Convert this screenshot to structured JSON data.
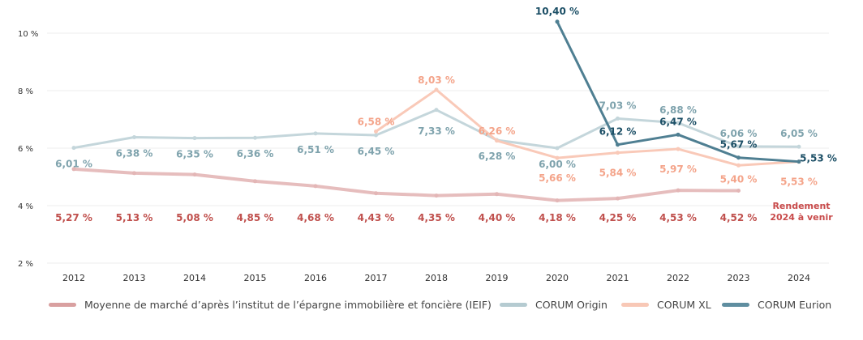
{
  "chart_data": {
    "type": "line",
    "x": [
      "2012",
      "2013",
      "2014",
      "2015",
      "2016",
      "2017",
      "2018",
      "2019",
      "2020",
      "2021",
      "2022",
      "2023",
      "2024"
    ],
    "y_ticks": [
      "10 %",
      "8 %",
      "6 %",
      "4 %",
      "2 %"
    ],
    "ylim": [
      2,
      10.4
    ],
    "grid": true,
    "legend_position": "bottom",
    "series": [
      {
        "name": "Moyenne de marché d’après l’institut de l’épargne immobilière et foncière (IEIF)",
        "color": "#c0504d",
        "values": [
          5.27,
          5.13,
          5.08,
          4.85,
          4.68,
          4.43,
          4.35,
          4.4,
          4.18,
          4.25,
          4.53,
          4.52,
          null
        ],
        "labels": [
          "5,27 %",
          "5,13 %",
          "5,08 %",
          "4,85 %",
          "4,68 %",
          "4,43 %",
          "4,35 %",
          "4,40 %",
          "4,18 %",
          "4,25 %",
          "4,53 %",
          "4,52 %",
          ""
        ]
      },
      {
        "name": "CORUM Origin",
        "color": "#7fa3ad",
        "values": [
          6.01,
          6.38,
          6.35,
          6.36,
          6.51,
          6.45,
          7.33,
          6.28,
          6.0,
          7.03,
          6.88,
          6.06,
          6.05
        ],
        "labels": [
          "6,01 %",
          "6,38 %",
          "6,35 %",
          "6,36 %",
          "6,51 %",
          "6,45 %",
          "7,33 %",
          "6,28 %",
          "6,00 %",
          "7,03 %",
          "6,88 %",
          "6,06 %",
          "6,05 %"
        ]
      },
      {
        "name": "CORUM XL",
        "color": "#f4a48a",
        "values": [
          null,
          null,
          null,
          null,
          null,
          6.58,
          8.03,
          6.26,
          5.66,
          5.84,
          5.97,
          5.4,
          5.53
        ],
        "labels": [
          "",
          "",
          "",
          "",
          "",
          "6,58 %",
          "8,03 %",
          "6,26 %",
          "5,66 %",
          "5,84 %",
          "5,97 %",
          "5,40 %",
          "5,53 %"
        ]
      },
      {
        "name": "CORUM Eurion",
        "color": "#1c4f66",
        "values": [
          null,
          null,
          null,
          null,
          null,
          null,
          null,
          null,
          10.4,
          6.12,
          6.47,
          5.67,
          5.53
        ],
        "labels": [
          "",
          "",
          "",
          "",
          "",
          "",
          "",
          "",
          "10,40 %",
          "6,12 %",
          "6,47 %",
          "5,67 %",
          "5,53 %"
        ]
      }
    ],
    "annotation": "Rendement 2024 à venir"
  }
}
